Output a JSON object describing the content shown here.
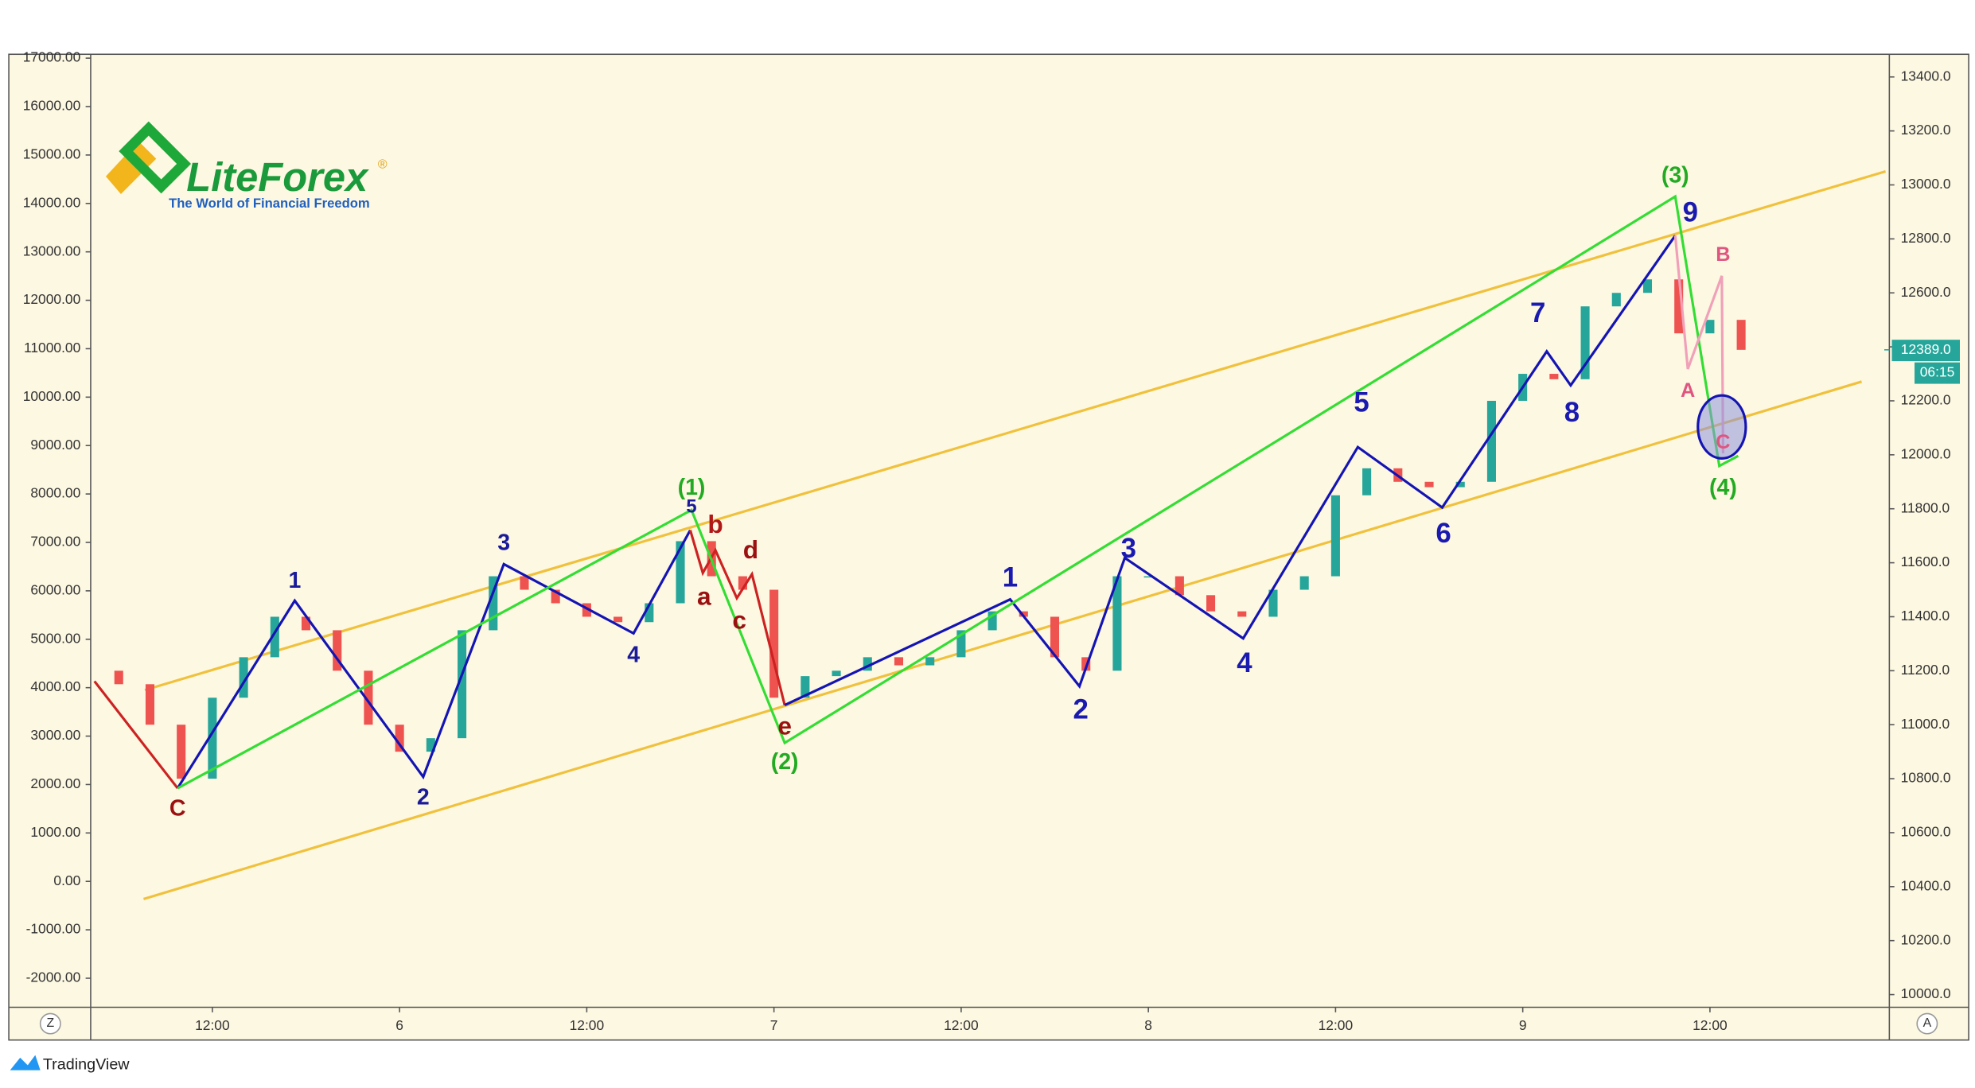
{
  "chart_data": {
    "type": "candlestick",
    "x": [
      6,
      8,
      10,
      12,
      14,
      16,
      18,
      20,
      22,
      24,
      26,
      28,
      30,
      32,
      34,
      36,
      38,
      40,
      42,
      44,
      46,
      48,
      50,
      52,
      54,
      56,
      58,
      60,
      62,
      64,
      66,
      68,
      70,
      72,
      74,
      76,
      78,
      80,
      82,
      84,
      86,
      88,
      90,
      92,
      94,
      96,
      98,
      100,
      102,
      104,
      106,
      108,
      110
    ],
    "open": [
      11200,
      11150,
      11000,
      10800,
      11100,
      11250,
      11400,
      11350,
      11200,
      11000,
      10900,
      10950,
      11350,
      11550,
      11500,
      11450,
      11400,
      11380,
      11450,
      11680,
      11550,
      11500,
      11100,
      11180,
      11200,
      11250,
      11220,
      11250,
      11350,
      11420,
      11400,
      11250,
      11200,
      11550,
      11550,
      11480,
      11420,
      11400,
      11500,
      11550,
      11850,
      11950,
      11900,
      11880,
      11900,
      12200,
      12300,
      12280,
      12550,
      12600,
      12650,
      12450,
      12500
    ],
    "close": [
      11150,
      11000,
      10800,
      11100,
      11250,
      11400,
      11350,
      11200,
      11000,
      10900,
      10950,
      11350,
      11550,
      11500,
      11450,
      11400,
      11380,
      11450,
      11680,
      11550,
      11500,
      11100,
      11180,
      11200,
      11250,
      11220,
      11250,
      11350,
      11420,
      11400,
      11250,
      11200,
      11550,
      11550,
      11480,
      11420,
      11400,
      11500,
      11550,
      11850,
      11950,
      11900,
      11880,
      11900,
      12200,
      12300,
      12280,
      12550,
      12600,
      12650,
      12450,
      12500,
      12389
    ],
    "up_color": "#26a69a",
    "down_color": "#ef5350",
    "xlim": [
      4.2,
      119.5
    ],
    "xticks": [
      {
        "value": 12,
        "label": "12:00"
      },
      {
        "value": 24,
        "label": "6"
      },
      {
        "value": 36,
        "label": "12:00"
      },
      {
        "value": 48,
        "label": "7"
      },
      {
        "value": 60,
        "label": "12:00"
      },
      {
        "value": 72,
        "label": "8"
      },
      {
        "value": 84,
        "label": "12:00"
      },
      {
        "value": 96,
        "label": "9"
      },
      {
        "value": 108,
        "label": "12:00"
      }
    ],
    "ylim": [
      -2600,
      17080
    ],
    "yticks": [
      {
        "value": 17000,
        "label": "17000.00"
      },
      {
        "value": 16000,
        "label": "16000.00"
      },
      {
        "value": 15000,
        "label": "15000.00"
      },
      {
        "value": 14000,
        "label": "14000.00"
      },
      {
        "value": 13000,
        "label": "13000.00"
      },
      {
        "value": 12000,
        "label": "12000.00"
      },
      {
        "value": 11000,
        "label": "11000.00"
      },
      {
        "value": 10000,
        "label": "10000.00"
      },
      {
        "value": 9000,
        "label": "9000.00"
      },
      {
        "value": 8000,
        "label": "8000.00"
      },
      {
        "value": 7000,
        "label": "7000.00"
      },
      {
        "value": 6000,
        "label": "6000.00"
      },
      {
        "value": 5000,
        "label": "5000.00"
      },
      {
        "value": 4000,
        "label": "4000.00"
      },
      {
        "value": 3000,
        "label": "3000.00"
      },
      {
        "value": 2000,
        "label": "2000.00"
      },
      {
        "value": 1000,
        "label": "1000.00"
      },
      {
        "value": 0,
        "label": "0.00"
      },
      {
        "value": -1000,
        "label": "-1000.00"
      },
      {
        "value": -2000,
        "label": "-2000.00"
      }
    ],
    "y2lim": [
      9953,
      13484
    ],
    "y2ticks": [
      {
        "value": 13400,
        "label": "13400.0"
      },
      {
        "value": 13200,
        "label": "13200.0"
      },
      {
        "value": 13000,
        "label": "13000.0"
      },
      {
        "value": 12800,
        "label": "12800.0"
      },
      {
        "value": 12600,
        "label": "12600.0"
      },
      {
        "value": 12400,
        "label": "12400.0"
      },
      {
        "value": 12200,
        "label": "12200.0"
      },
      {
        "value": 12000,
        "label": "12000.0"
      },
      {
        "value": 11800,
        "label": "11800.0"
      },
      {
        "value": 11600,
        "label": "11600.0"
      },
      {
        "value": 11400,
        "label": "11400.0"
      },
      {
        "value": 11200,
        "label": "11200.0"
      },
      {
        "value": 11000,
        "label": "11000.0"
      },
      {
        "value": 10800,
        "label": "10800.0"
      },
      {
        "value": 10600,
        "label": "10600.0"
      },
      {
        "value": 10400,
        "label": "10400.0"
      },
      {
        "value": 10200,
        "label": "10200.0"
      },
      {
        "value": 10000,
        "label": "10000.0"
      }
    ],
    "last_price": {
      "value": 12389,
      "label": "12389.0"
    },
    "countdown": "06:15",
    "annotations": [
      {
        "text": "C",
        "color": "#9b1010"
      },
      {
        "text": "1",
        "color": "#1a1a9a"
      },
      {
        "text": "2",
        "color": "#1a1a9a"
      },
      {
        "text": "3",
        "color": "#1a1a9a"
      },
      {
        "text": "4",
        "color": "#1a1a9a"
      },
      {
        "text": "5",
        "color": "#1a1a9a"
      },
      {
        "text": "(1)",
        "color": "#22aa22"
      },
      {
        "text": "b",
        "color": "#b01818"
      },
      {
        "text": "a",
        "color": "#9b1010"
      },
      {
        "text": "d",
        "color": "#9b1010"
      },
      {
        "text": "c",
        "color": "#9b1010"
      },
      {
        "text": "e",
        "color": "#9b1010"
      },
      {
        "text": "(2)",
        "color": "#22aa22"
      },
      {
        "text": "1",
        "color": "#1a1ab0"
      },
      {
        "text": "2",
        "color": "#1a1ab0"
      },
      {
        "text": "3",
        "color": "#1a1ab0"
      },
      {
        "text": "4",
        "color": "#1a1ab0"
      },
      {
        "text": "5",
        "color": "#1a1ab0"
      },
      {
        "text": "6",
        "color": "#1a1ab0"
      },
      {
        "text": "7",
        "color": "#1a1ab0"
      },
      {
        "text": "8",
        "color": "#1a1ab0"
      },
      {
        "text": "9",
        "color": "#1a1ab0"
      },
      {
        "text": "(3)",
        "color": "#22aa22"
      },
      {
        "text": "B",
        "color": "#e05580"
      },
      {
        "text": "A",
        "color": "#e05580"
      },
      {
        "text": "C",
        "color": "#e05580"
      },
      {
        "text": "(4)",
        "color": "#22aa22"
      }
    ]
  },
  "logo": {
    "name": "LiteForex",
    "mark": "®",
    "tagline": "The World of Financial Freedom"
  },
  "footer": {
    "brand": "TradingView",
    "left_button": "Z",
    "right_button": "A"
  }
}
